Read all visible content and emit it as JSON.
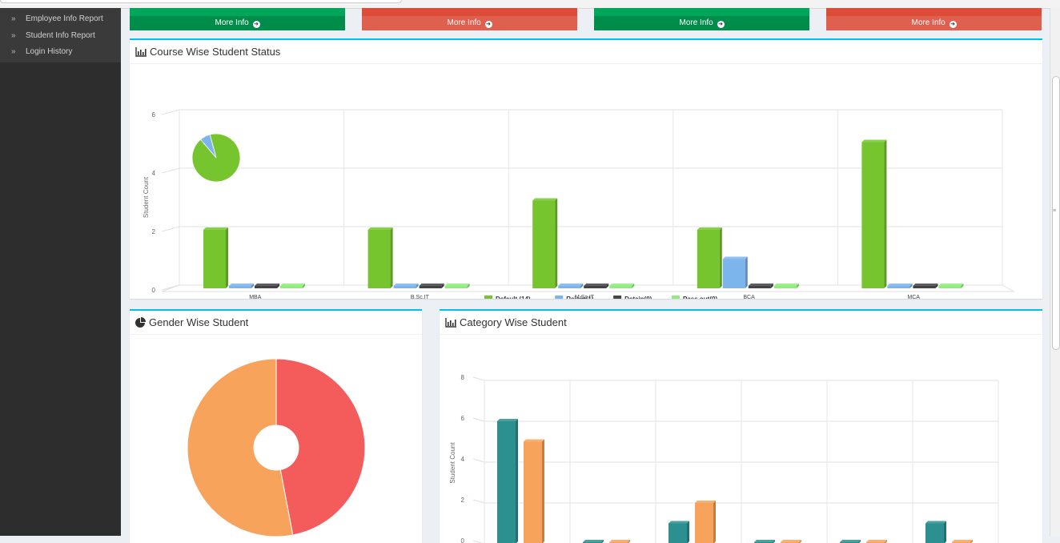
{
  "sidebar": {
    "items": [
      {
        "label": "Employee Info Report",
        "icon": "chevron-right-icon"
      },
      {
        "label": "Student Info Report",
        "icon": "chevron-right-icon"
      },
      {
        "label": "Login History",
        "icon": "chevron-right-icon"
      }
    ]
  },
  "stats": [
    {
      "more": "More Info",
      "color": "#00a65a"
    },
    {
      "more": "More Info",
      "color": "#dd4b39"
    },
    {
      "more": "More Info",
      "color": "#00a65a"
    },
    {
      "more": "More Info",
      "color": "#dd4b39"
    }
  ],
  "course_box": {
    "title": "Course Wise Student Status",
    "icon": "bar-chart-icon"
  },
  "gender_box": {
    "title": "Gender Wise Student",
    "icon": "pie-chart-icon"
  },
  "category_box": {
    "title": "Category Wise Student",
    "icon": "bar-chart-icon"
  },
  "chart_data": [
    {
      "type": "bar",
      "title": "",
      "ylabel": "Student Count",
      "ylim": [
        0,
        6
      ],
      "yticks": [
        "0",
        "2",
        "4",
        "6"
      ],
      "categories": [
        "MBA",
        "B.Sc.IT",
        "M.Sc.IT",
        "BCA",
        "MCA"
      ],
      "series": [
        {
          "name": "Default (14)",
          "color": "#76c52f",
          "values": [
            2,
            2,
            3,
            2,
            5
          ]
        },
        {
          "name": "Rejoin(1)",
          "color": "#7cb5ec",
          "values": [
            0,
            0,
            0,
            1,
            0
          ]
        },
        {
          "name": "Detain(0)",
          "color": "#434348",
          "values": [
            0,
            0,
            0,
            0,
            0
          ]
        },
        {
          "name": "Pass out(0)",
          "color": "#90ed7d",
          "values": [
            0,
            0,
            0,
            0,
            0
          ]
        }
      ],
      "legend": "bottom",
      "inset_pie": [
        {
          "value": 93,
          "color": "#76c52f"
        },
        {
          "value": 7,
          "color": "#7cb5ec"
        }
      ]
    },
    {
      "type": "pie",
      "title": "",
      "slices": [
        {
          "value": 47,
          "color": "#f45b5b"
        },
        {
          "value": 53,
          "color": "#f7a35c"
        }
      ],
      "donut": true
    },
    {
      "type": "bar",
      "title": "",
      "ylabel": "Student Count",
      "ylim": [
        0,
        8
      ],
      "yticks": [
        "0",
        "2",
        "4",
        "6",
        "8"
      ],
      "categories": [
        "",
        "",
        "",
        "",
        "",
        ""
      ],
      "series": [
        {
          "color": "#2b908f",
          "values": [
            6,
            0,
            1,
            0,
            0,
            1
          ]
        },
        {
          "color": "#f7a35c",
          "values": [
            5,
            0,
            2,
            0,
            0,
            0
          ]
        }
      ]
    }
  ]
}
